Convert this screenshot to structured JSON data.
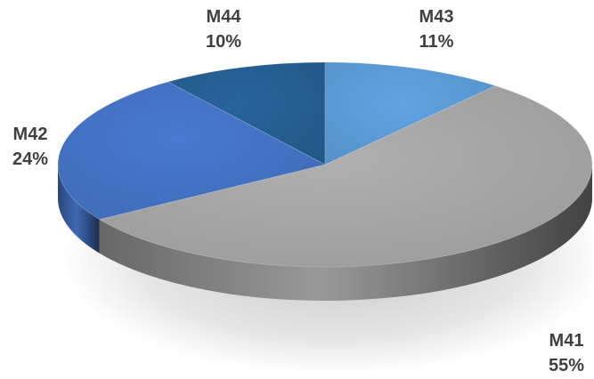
{
  "chart_data": {
    "type": "pie",
    "style": "3d",
    "slices": [
      {
        "label": "M41",
        "value": 55,
        "percent_label": "55%",
        "color": "#a6a6a6"
      },
      {
        "label": "M42",
        "value": 24,
        "percent_label": "24%",
        "color": "#4472c4"
      },
      {
        "label": "M44",
        "value": 10,
        "percent_label": "10%",
        "color": "#255e91"
      },
      {
        "label": "M43",
        "value": 11,
        "percent_label": "11%",
        "color": "#5b9bd5"
      }
    ],
    "legend": "none",
    "data_labels": "outside"
  }
}
